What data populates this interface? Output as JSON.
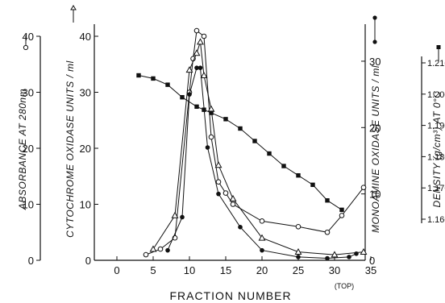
{
  "chart_data": {
    "type": "line",
    "xlabel": "FRACTION NUMBER",
    "xlabel_note": "(TOP)",
    "xlim": [
      0,
      35
    ],
    "xticks": [
      "0",
      "5",
      "10",
      "15",
      "20",
      "25",
      "30",
      "35"
    ],
    "grid": false,
    "legend": "none",
    "axes": {
      "absorbance": {
        "label": "ABSORBANCE AT 280nm",
        "range": [
          0,
          40
        ],
        "ticks": [
          "0",
          "10",
          "20",
          "30",
          "40"
        ],
        "symbol": "open-circle"
      },
      "cytochrome": {
        "label": "CYTOCHROME OXIDASE UNITS / ml",
        "range": [
          0,
          40
        ],
        "ticks": [
          "0",
          "10",
          "20",
          "30",
          "40"
        ],
        "symbol": "open-triangle"
      },
      "monoamine": {
        "label": "MONOAMINE OXIDASE UNITS / ml",
        "range": [
          0,
          34
        ],
        "ticks": [
          "0",
          "10",
          "20",
          "30"
        ],
        "symbol": "filled-circle"
      },
      "density": {
        "label": "DENSITY (g/cm³) AT 0°C",
        "range": [
          1.157,
          1.213
        ],
        "ticks": [
          "1.160",
          "1.170",
          "1.180",
          "1.190",
          "1.200",
          "1.210"
        ],
        "symbol": "filled-square"
      }
    },
    "series": [
      {
        "marker": "circle-open",
        "axis": "absorbance",
        "x": [
          4,
          6,
          8,
          10,
          10.5,
          11,
          12,
          13,
          14,
          15,
          16,
          20,
          25,
          29,
          31,
          34
        ],
        "y": [
          1,
          2,
          4,
          30,
          36,
          41,
          40,
          22,
          14,
          12,
          10,
          7,
          6,
          5,
          8,
          13
        ]
      },
      {
        "marker": "triangle-open",
        "axis": "cytochrome",
        "x": [
          5,
          8,
          10,
          11,
          11.5,
          12,
          13,
          14,
          16,
          20,
          25,
          30,
          34
        ],
        "y": [
          2,
          8,
          34,
          37,
          39,
          33,
          27,
          17,
          11,
          4,
          1.5,
          1,
          1.5
        ]
      },
      {
        "marker": "circle-filled",
        "axis": "monoamine",
        "x": [
          7,
          9,
          10,
          11,
          11.5,
          12.5,
          14,
          17,
          20,
          25,
          29,
          32,
          33
        ],
        "y": [
          1.5,
          6.5,
          25,
          29,
          29,
          17,
          10,
          5,
          1.5,
          0.5,
          0.3,
          0.5,
          1.0
        ]
      },
      {
        "marker": "square-filled",
        "axis": "density",
        "x": [
          3,
          5,
          7,
          9,
          11,
          12,
          13,
          15,
          17,
          19,
          21,
          23,
          25,
          27,
          29,
          31
        ],
        "y": [
          1.206,
          1.205,
          1.203,
          1.199,
          1.196,
          1.195,
          1.194,
          1.192,
          1.189,
          1.185,
          1.181,
          1.177,
          1.174,
          1.171,
          1.166,
          1.163
        ]
      }
    ]
  }
}
